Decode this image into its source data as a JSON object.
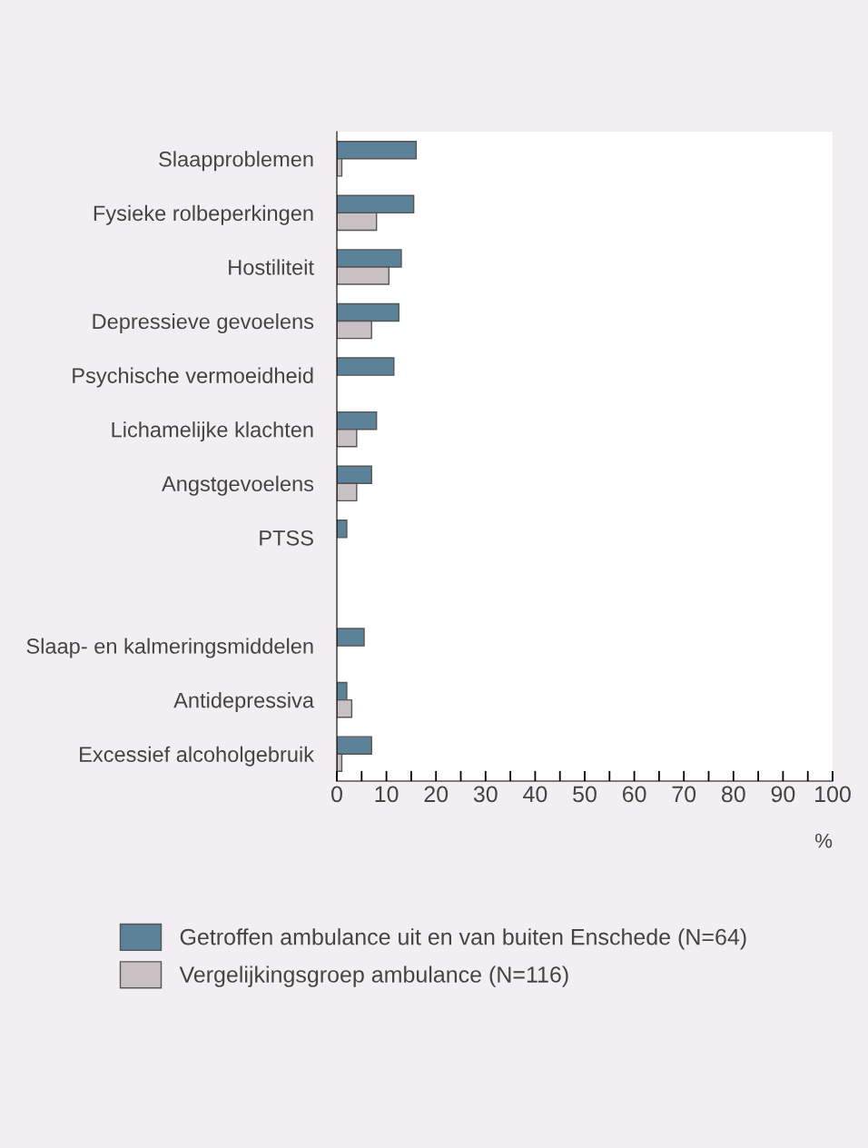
{
  "chart_data": {
    "type": "bar",
    "orientation": "horizontal",
    "xlabel": "%",
    "categories": [
      "Slaapproblemen",
      "Fysieke rolbeperkingen",
      "Hostiliteit",
      "Depressieve gevoelens",
      "Psychische vermoeidheid",
      "Lichamelijke klachten",
      "Angstgevoelens",
      "PTSS",
      null,
      "Slaap- en kalmeringsmiddelen",
      "Antidepressiva",
      "Excessief alcoholgebruik"
    ],
    "series": [
      {
        "name": "Getroffen ambulance uit en van buiten Enschede (N=64)",
        "color": "#5b8299",
        "values": [
          16,
          15.5,
          13,
          12.5,
          11.5,
          8,
          7,
          2,
          null,
          5.5,
          2,
          7
        ]
      },
      {
        "name": "Vergelijkingsgroep ambulance (N=116)",
        "color": "#c8c0c2",
        "values": [
          1,
          8,
          10.5,
          7,
          null,
          4,
          4,
          null,
          null,
          null,
          3,
          1
        ]
      }
    ],
    "xlim": [
      0,
      100
    ],
    "xticks": [
      0,
      {
        "value": 5,
        "label": null
      },
      10,
      {
        "value": 15,
        "label": null
      },
      20,
      {
        "value": 25,
        "label": null
      },
      30,
      {
        "value": 35,
        "label": null
      },
      40,
      {
        "value": 45,
        "label": null
      },
      50,
      {
        "value": 55,
        "label": null
      },
      60,
      {
        "value": 65,
        "label": null
      },
      70,
      {
        "value": 75,
        "label": null
      },
      80,
      {
        "value": 85,
        "label": null
      },
      90,
      {
        "value": 95,
        "label": null
      },
      100
    ],
    "grid": false,
    "legend": "bottom"
  }
}
